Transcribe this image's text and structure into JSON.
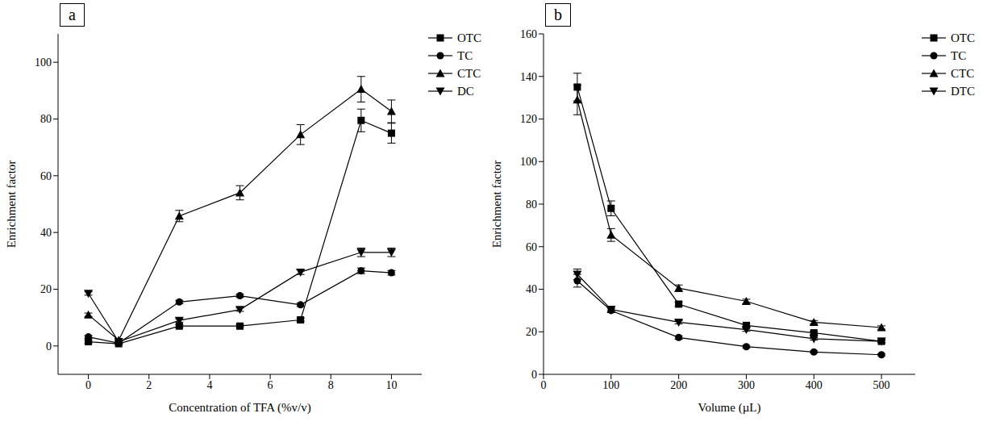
{
  "chart_data": [
    {
      "type": "line",
      "panel_label": "a",
      "xlabel": "Concentration of TFA (%v/v)",
      "ylabel": "Enrichment factor",
      "x": [
        0,
        1,
        3,
        5,
        7,
        9,
        10
      ],
      "xlim": [
        -1,
        11
      ],
      "xticks": [
        0,
        2,
        4,
        6,
        8,
        10
      ],
      "ylim": [
        -10,
        110
      ],
      "yticks": [
        0,
        20,
        40,
        60,
        80,
        100
      ],
      "grid": false,
      "legend": "right",
      "series": [
        {
          "name": "OTC",
          "color": "#000000",
          "marker": "square",
          "line_style": "solid",
          "values": [
            1.5,
            0.8,
            7,
            7,
            9.2,
            79.5,
            75
          ],
          "errors": [
            0.5,
            0.3,
            0.5,
            0.5,
            0.6,
            4,
            3.5
          ]
        },
        {
          "name": "TC",
          "color": "#000000",
          "marker": "circle",
          "line_style": "solid",
          "values": [
            3.2,
            1.0,
            15.5,
            17.7,
            14.5,
            26.5,
            25.8
          ],
          "errors": [
            0.5,
            0.3,
            0.6,
            0.6,
            0.6,
            1,
            0.8
          ]
        },
        {
          "name": "CTC",
          "color": "#000000",
          "marker": "triangle",
          "line_style": "solid",
          "values": [
            11,
            2.0,
            45.8,
            54,
            74.5,
            90.5,
            82.7
          ],
          "errors": [
            0.6,
            0.3,
            2,
            2.5,
            3.5,
            4.5,
            4
          ]
        },
        {
          "name": "DC",
          "color": "#000000",
          "marker": "triangle-down",
          "line_style": "solid",
          "values": [
            18.5,
            1.5,
            9,
            12.8,
            26,
            33,
            33
          ],
          "errors": [
            0.6,
            0.3,
            0.6,
            0.6,
            0.8,
            1.5,
            1.5
          ]
        }
      ]
    },
    {
      "type": "line",
      "panel_label": "b",
      "xlabel": "Volume (µL)",
      "ylabel": "Enrichment factor",
      "x": [
        50,
        100,
        200,
        300,
        400,
        500
      ],
      "xlim": [
        0,
        550
      ],
      "xticks": [
        0,
        100,
        200,
        300,
        400,
        500
      ],
      "ylim": [
        0,
        160
      ],
      "yticks": [
        0,
        20,
        40,
        60,
        80,
        100,
        120,
        140,
        160
      ],
      "grid": false,
      "legend": "right",
      "series": [
        {
          "name": "OTC",
          "color": "#000000",
          "marker": "square",
          "line_style": "solid",
          "values": [
            135,
            78,
            33,
            23,
            19.5,
            15.5
          ],
          "errors": [
            6.5,
            3.5,
            1,
            0.8,
            0.8,
            0.6
          ]
        },
        {
          "name": "TC",
          "color": "#000000",
          "marker": "circle",
          "line_style": "solid",
          "values": [
            44,
            30,
            17.3,
            13,
            10.5,
            9.2
          ],
          "errors": [
            3,
            1,
            0.8,
            0.6,
            0.5,
            0.5
          ]
        },
        {
          "name": "CTC",
          "color": "#000000",
          "marker": "triangle",
          "line_style": "solid",
          "values": [
            129,
            65.5,
            40.5,
            34.3,
            24.5,
            22
          ],
          "errors": [
            7,
            3,
            1.5,
            1,
            0.8,
            0.8
          ]
        },
        {
          "name": "DTC",
          "color": "#000000",
          "marker": "triangle-down",
          "line_style": "solid",
          "values": [
            47,
            30.5,
            24.5,
            21,
            16.7,
            15.5
          ],
          "errors": [
            2.5,
            1,
            0.8,
            0.8,
            0.6,
            0.6
          ]
        }
      ]
    }
  ]
}
